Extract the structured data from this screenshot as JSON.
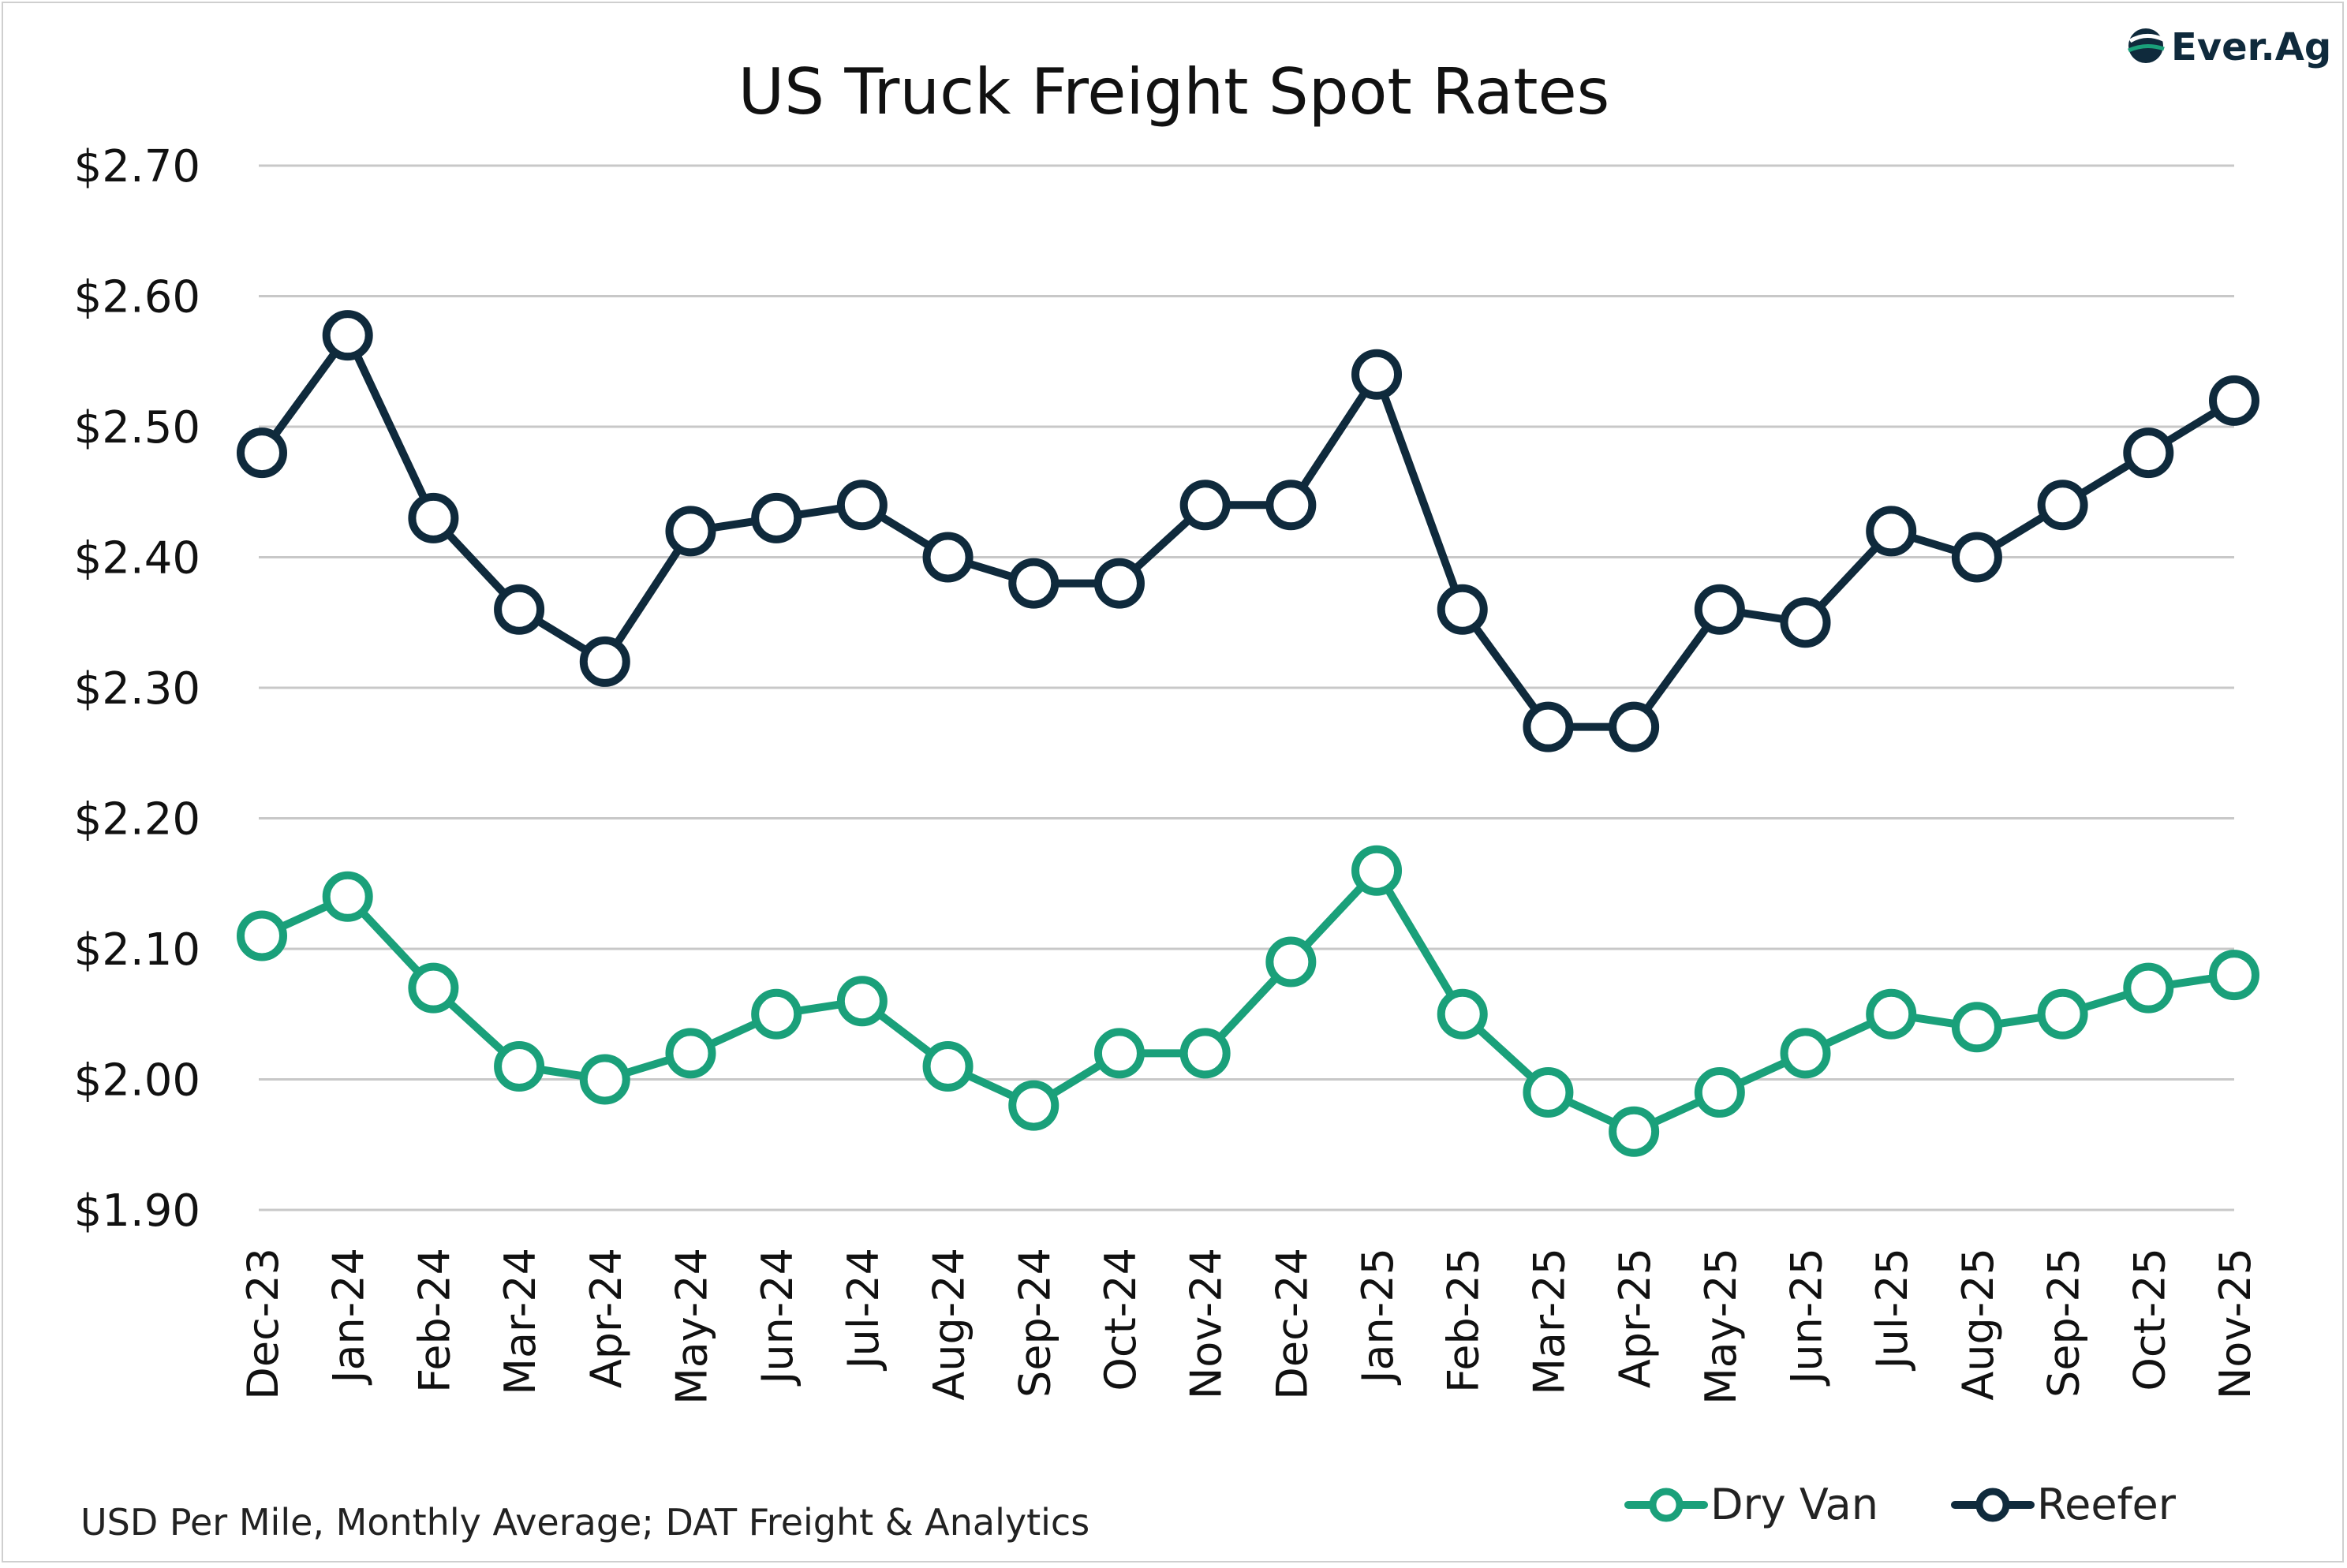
{
  "brand": {
    "name": "Ever.Ag",
    "colors": {
      "dark": "#0f2a3c",
      "green": "#1aa07a"
    }
  },
  "chart_data": {
    "type": "line",
    "title": "US Truck Freight Spot Rates",
    "xlabel": "",
    "ylabel": "",
    "source_note": "USD Per Mile, Monthly Average; DAT Freight & Analytics",
    "ylim": [
      1.9,
      2.7
    ],
    "y_ticks": [
      1.9,
      2.0,
      2.1,
      2.2,
      2.3,
      2.4,
      2.5,
      2.6,
      2.7
    ],
    "y_tick_labels": [
      "$1.90",
      "$2.00",
      "$2.10",
      "$2.20",
      "$2.30",
      "$2.40",
      "$2.50",
      "$2.60",
      "$2.70"
    ],
    "grid": true,
    "legend_position": "bottom-right",
    "categories": [
      "Dec-23",
      "Jan-24",
      "Feb-24",
      "Mar-24",
      "Apr-24",
      "May-24",
      "Jun-24",
      "Jul-24",
      "Aug-24",
      "Sep-24",
      "Oct-24",
      "Nov-24",
      "Dec-24",
      "Jan-25",
      "Feb-25",
      "Mar-25",
      "Apr-25",
      "May-25",
      "Jun-25",
      "Jul-25",
      "Aug-25",
      "Sep-25",
      "Oct-25",
      "Nov-25"
    ],
    "series": [
      {
        "name": "Dry Van",
        "color": "#1aa07a",
        "values": [
          2.11,
          2.14,
          2.07,
          2.01,
          2.0,
          2.02,
          2.05,
          2.06,
          2.01,
          1.98,
          2.02,
          2.02,
          2.09,
          2.16,
          2.05,
          1.99,
          1.96,
          1.99,
          2.02,
          2.05,
          2.04,
          2.05,
          2.07,
          2.08
        ]
      },
      {
        "name": "Reefer",
        "color": "#0f2a3c",
        "values": [
          2.48,
          2.57,
          2.43,
          2.36,
          2.32,
          2.42,
          2.43,
          2.44,
          2.4,
          2.38,
          2.38,
          2.44,
          2.44,
          2.54,
          2.36,
          2.27,
          2.27,
          2.36,
          2.35,
          2.42,
          2.4,
          2.44,
          2.48,
          2.52
        ]
      }
    ]
  }
}
